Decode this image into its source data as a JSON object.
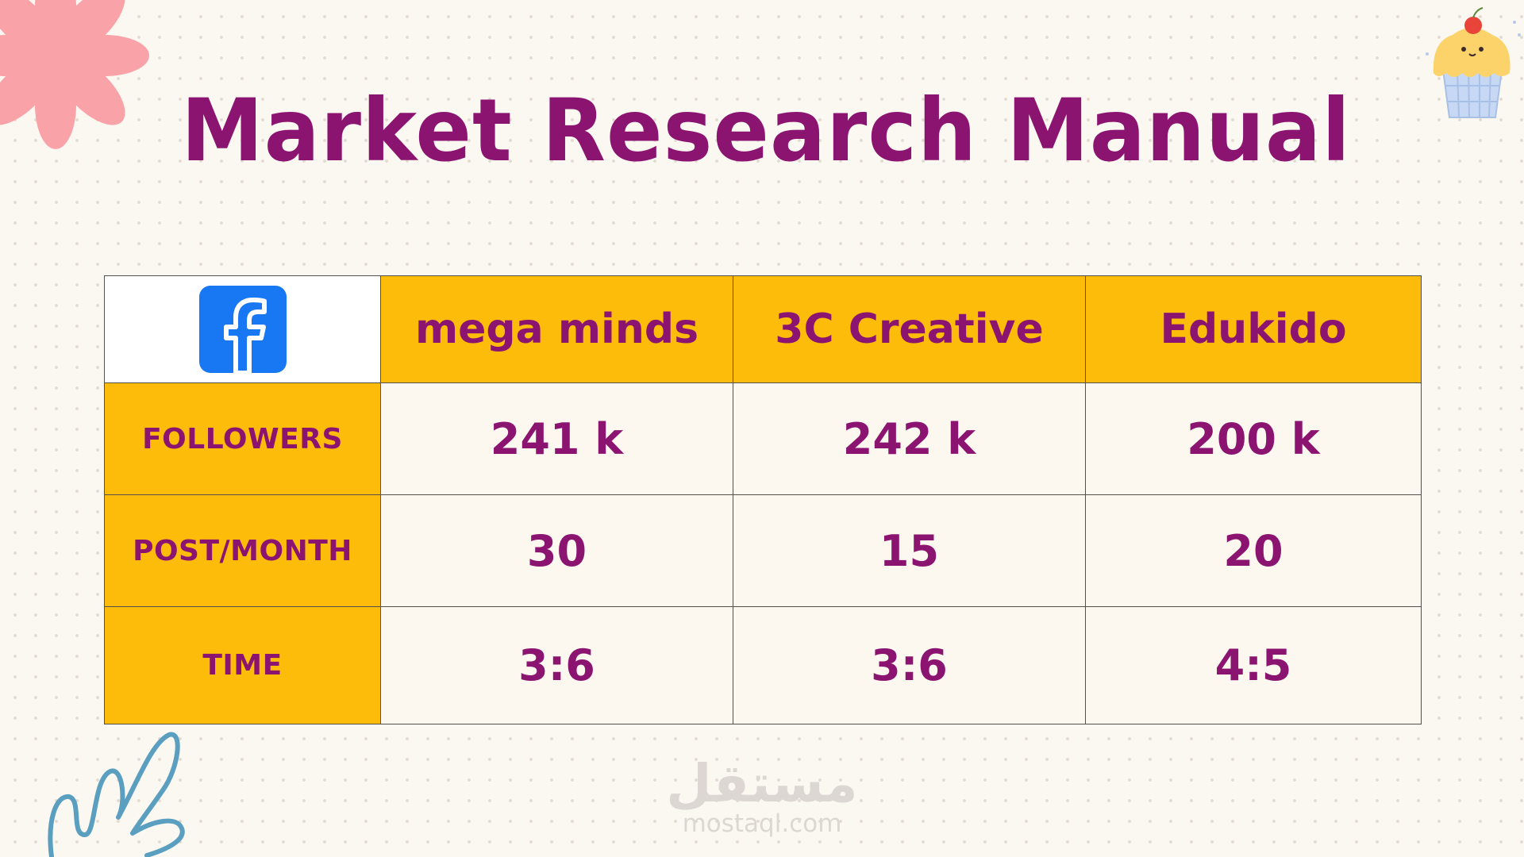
{
  "title": "Market Research Manual",
  "platform_icon": "facebook-logo-icon",
  "colors": {
    "title": "#8c1471",
    "header_yellow": "#fdbc0a",
    "cell_cream": "#fcf7ef",
    "facebook_blue": "#1877f2",
    "background": "#fbf7f1"
  },
  "table": {
    "columns": [
      "mega minds",
      "3C Creative",
      "Edukido"
    ],
    "rows": [
      {
        "label": "FOLLOWERS",
        "values": [
          "241 k",
          "242 k",
          "200 k"
        ]
      },
      {
        "label": "POST/MONTH",
        "values": [
          "30",
          "15",
          "20"
        ]
      },
      {
        "label": "TIME",
        "values": [
          "3:6",
          "3:6",
          "4:5"
        ]
      }
    ]
  },
  "decorations": [
    "pink-flower-icon",
    "cupcake-icon",
    "squiggle-icon"
  ],
  "watermark": {
    "arabic": "مستقل",
    "latin": "mostaql.com"
  }
}
